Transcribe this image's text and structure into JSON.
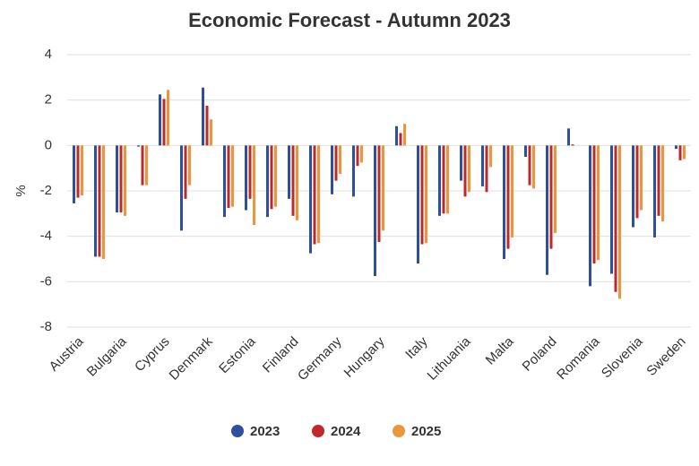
{
  "chart_data": {
    "type": "bar",
    "title": "Economic Forecast - Autumn 2023",
    "y_label": "%",
    "categories": [
      "Austria",
      null,
      "Bulgaria",
      null,
      "Cyprus",
      null,
      "Denmark",
      null,
      "Estonia",
      null,
      "Finland",
      null,
      "Germany",
      null,
      "Hungary",
      null,
      "Italy",
      null,
      "Lithuania",
      null,
      "Malta",
      null,
      "Poland",
      null,
      "Romania",
      null,
      "Slovenia",
      null,
      "Sweden"
    ],
    "series": [
      {
        "name": "2023",
        "color": "#2e4fa0",
        "values": [
          -2.55,
          -4.9,
          -2.95,
          -0.05,
          2.25,
          -3.75,
          2.55,
          -3.15,
          -2.85,
          -3.15,
          -2.35,
          -4.75,
          -2.15,
          -2.25,
          -5.75,
          0.85,
          -5.2,
          -3.1,
          -1.55,
          -1.8,
          -5.0,
          -0.5,
          -5.7,
          0.75,
          -6.2,
          -5.65,
          -3.6,
          -4.05,
          -0.15
        ]
      },
      {
        "name": "2024",
        "color": "#c0282d",
        "values": [
          -2.3,
          -4.9,
          -2.95,
          -1.75,
          2.05,
          -2.35,
          1.75,
          -2.75,
          -2.35,
          -2.8,
          -3.1,
          -4.35,
          -1.55,
          -0.9,
          -4.25,
          0.55,
          -4.35,
          -3.0,
          -2.25,
          -2.05,
          -4.55,
          -1.75,
          -4.55,
          0.05,
          -5.2,
          -6.45,
          -3.2,
          -3.1,
          -0.65
        ]
      },
      {
        "name": "2025",
        "color": "#e8973a",
        "values": [
          -2.2,
          -5.0,
          -3.1,
          -1.75,
          2.45,
          -1.75,
          1.15,
          -2.7,
          -3.5,
          -2.7,
          -3.3,
          -4.3,
          -1.25,
          -0.75,
          -3.75,
          0.95,
          -4.3,
          -3.0,
          -2.05,
          -0.95,
          -4.05,
          -1.9,
          -3.85,
          0.0,
          -5.05,
          -6.75,
          -2.85,
          -3.35,
          -0.6
        ]
      }
    ],
    "ylim": [
      -8,
      4
    ],
    "yticks": [
      -8,
      -6,
      -4,
      -2,
      0,
      2,
      4
    ],
    "grid": true,
    "legend": "bottom"
  }
}
